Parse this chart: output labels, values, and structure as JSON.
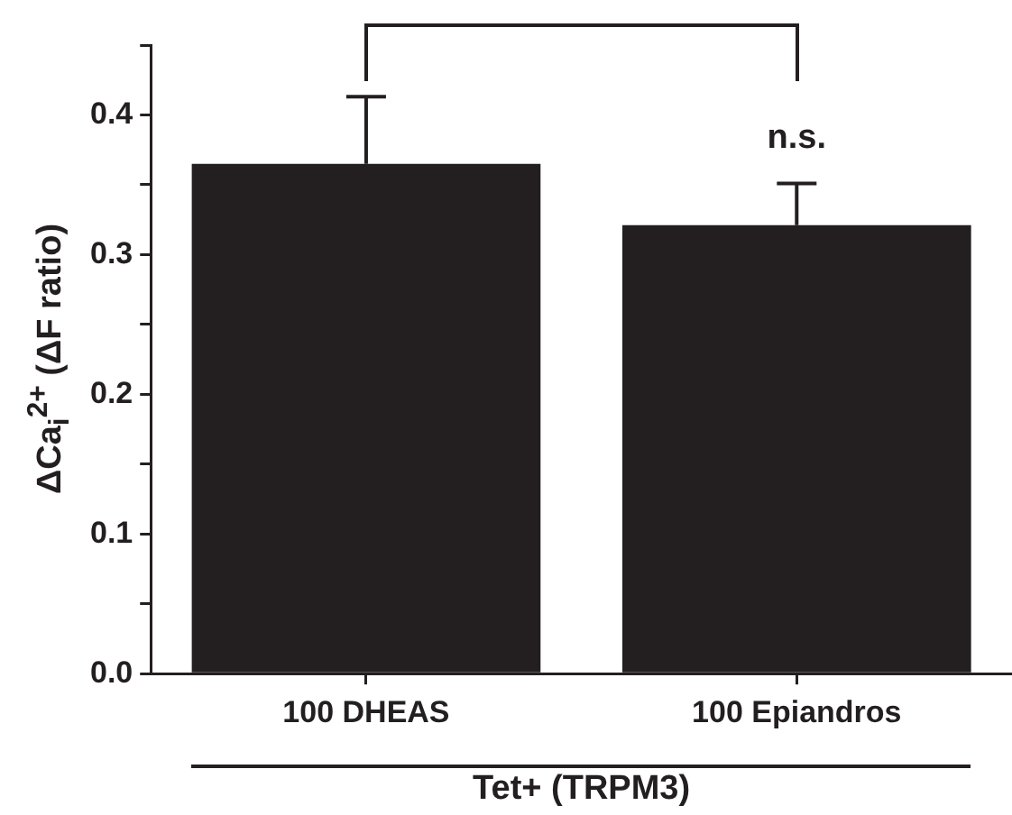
{
  "chart_data": {
    "type": "bar",
    "xlabel": "Tet+ (TRPM3)",
    "ylabel": "ΔCa$_{i}$$^{2+}$ (ΔF ratio)",
    "categories": [
      "100 DHEAS",
      "100 Epiandros"
    ],
    "values": [
      0.365,
      0.321
    ],
    "color": "#231f20",
    "errors": [
      [
        0.365,
        0.413
      ],
      [
        0.321,
        0.351
      ]
    ],
    "ylim": [
      0,
      0.45
    ],
    "yticks": [
      {
        "value": 0,
        "label": "0.0"
      },
      {
        "value": 0.05,
        "label": null
      },
      0.1,
      {
        "value": 0.15,
        "label": null
      },
      0.2,
      {
        "value": 0.25,
        "label": null
      },
      0.3,
      {
        "value": 0.35,
        "label": null
      },
      0.4,
      {
        "value": 0.45,
        "label": null
      }
    ],
    "annotations": [
      "n.s."
    ],
    "grid": false,
    "legend": false
  }
}
